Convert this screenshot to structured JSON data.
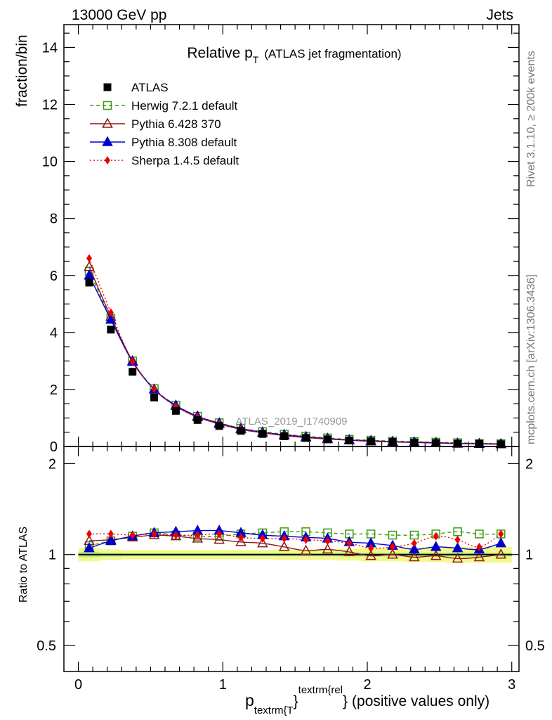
{
  "header": {
    "left": "13000 GeV pp",
    "right": "Jets"
  },
  "side_labels": {
    "rivet": "Rivet 3.1.10, ≥ 200k events",
    "mcplots": "mcplots.cern.ch [arXiv:1306.3436]"
  },
  "chart_data": [
    {
      "type": "scatter",
      "panel": "main",
      "title_main": "Relative p",
      "title_sub": "T",
      "title_rest": "(ATLAS jet fragmentation)",
      "ylabel": "fraction/bin",
      "watermark": "ATLAS_2019_I1740909",
      "xlabel_parts": {
        "p": "p",
        "sub": "textrm{T",
        "brace": "}",
        "sup": "textrm{rel",
        "close": "}",
        "rest": "(positive values only)"
      },
      "xlim": [
        -0.1,
        3.05
      ],
      "ylim": [
        0,
        14.8
      ],
      "xticks": [
        "0",
        "1",
        "2",
        "3"
      ],
      "yticks": [
        "0",
        "2",
        "4",
        "6",
        "8",
        "10",
        "12",
        "14"
      ],
      "x": [
        0.075,
        0.225,
        0.375,
        0.525,
        0.675,
        0.825,
        0.975,
        1.125,
        1.275,
        1.425,
        1.575,
        1.725,
        1.875,
        2.025,
        2.175,
        2.325,
        2.475,
        2.625,
        2.775,
        2.925
      ],
      "series": [
        {
          "name": "ATLAS",
          "color": "#000000",
          "marker": "square-filled",
          "line": "none",
          "values": [
            5.75,
            4.1,
            2.62,
            1.72,
            1.25,
            0.93,
            0.72,
            0.55,
            0.44,
            0.36,
            0.3,
            0.25,
            0.21,
            0.18,
            0.16,
            0.14,
            0.12,
            0.1,
            0.09,
            0.08
          ]
        },
        {
          "name": "Herwig 7.2.1 default",
          "color": "#3a9a10",
          "marker": "square-open",
          "line": "dashed",
          "values": [
            6.15,
            4.5,
            3.0,
            2.03,
            1.45,
            1.06,
            0.83,
            0.64,
            0.52,
            0.43,
            0.36,
            0.3,
            0.25,
            0.22,
            0.19,
            0.17,
            0.15,
            0.13,
            0.11,
            0.1
          ]
        },
        {
          "name": "Pythia 6.428 370",
          "color": "#8b1a1a",
          "marker": "triangle-open",
          "line": "solid",
          "values": [
            6.3,
            4.55,
            3.0,
            2.0,
            1.42,
            1.03,
            0.79,
            0.6,
            0.48,
            0.38,
            0.31,
            0.26,
            0.22,
            0.18,
            0.16,
            0.14,
            0.12,
            0.1,
            0.09,
            0.08
          ]
        },
        {
          "name": "Pythia 8.308 default",
          "color": "#0000cc",
          "marker": "triangle-filled",
          "line": "solid",
          "values": [
            6.0,
            4.45,
            2.97,
            2.0,
            1.44,
            1.06,
            0.82,
            0.63,
            0.5,
            0.41,
            0.34,
            0.28,
            0.23,
            0.2,
            0.17,
            0.15,
            0.13,
            0.11,
            0.1,
            0.09
          ]
        },
        {
          "name": "Sherpa 1.4.5 default",
          "color": "#ee0000",
          "marker": "diamond-filled",
          "line": "dotted",
          "values": [
            6.6,
            4.7,
            2.98,
            2.02,
            1.4,
            1.03,
            0.8,
            0.61,
            0.49,
            0.4,
            0.33,
            0.28,
            0.23,
            0.2,
            0.17,
            0.15,
            0.14,
            0.11,
            0.1,
            0.09
          ]
        }
      ]
    },
    {
      "type": "scatter",
      "panel": "ratio",
      "ylabel": "Ratio to ATLAS",
      "xlim": [
        -0.1,
        3.05
      ],
      "ylim": [
        0.41,
        2.28
      ],
      "ylog": true,
      "yticks_labeled": [
        "0.5",
        "1",
        "2"
      ],
      "yticks_labeled_right": [
        "0.5",
        "1",
        "2"
      ],
      "ref_line": 1.0,
      "band": {
        "outer_color": "#f4f88a",
        "inner_color": "#b4f07e",
        "outer": [
          0.05,
          0.04,
          0.035,
          0.035,
          0.035,
          0.035,
          0.035,
          0.035,
          0.035,
          0.04,
          0.04,
          0.04,
          0.045,
          0.05,
          0.05,
          0.055,
          0.055,
          0.06,
          0.06,
          0.06
        ],
        "inner": [
          0.02,
          0.015,
          0.012,
          0.012,
          0.012,
          0.012,
          0.012,
          0.012,
          0.012,
          0.012,
          0.012,
          0.012,
          0.015,
          0.015,
          0.015,
          0.015,
          0.015,
          0.015,
          0.015,
          0.015
        ]
      },
      "series": [
        {
          "name": "Herwig 7.2.1 default",
          "values": [
            1.07,
            1.11,
            1.15,
            1.18,
            1.16,
            1.15,
            1.15,
            1.17,
            1.18,
            1.19,
            1.19,
            1.18,
            1.17,
            1.17,
            1.16,
            1.16,
            1.17,
            1.19,
            1.17,
            1.17
          ]
        },
        {
          "name": "Pythia 6.428 370",
          "values": [
            1.11,
            1.12,
            1.14,
            1.16,
            1.15,
            1.13,
            1.12,
            1.1,
            1.09,
            1.06,
            1.03,
            1.04,
            1.02,
            0.99,
            1.0,
            0.98,
            0.99,
            0.97,
            0.98,
            1.0
          ]
        },
        {
          "name": "Pythia 8.308 default",
          "values": [
            1.05,
            1.11,
            1.15,
            1.18,
            1.19,
            1.2,
            1.2,
            1.18,
            1.16,
            1.15,
            1.14,
            1.13,
            1.1,
            1.09,
            1.07,
            1.04,
            1.06,
            1.05,
            1.04,
            1.09
          ]
        },
        {
          "name": "Sherpa 1.4.5 default",
          "values": [
            1.17,
            1.17,
            1.16,
            1.17,
            1.16,
            1.16,
            1.17,
            1.14,
            1.13,
            1.13,
            1.12,
            1.11,
            1.09,
            1.05,
            1.06,
            1.09,
            1.15,
            1.12,
            1.06,
            1.17
          ]
        }
      ]
    }
  ]
}
